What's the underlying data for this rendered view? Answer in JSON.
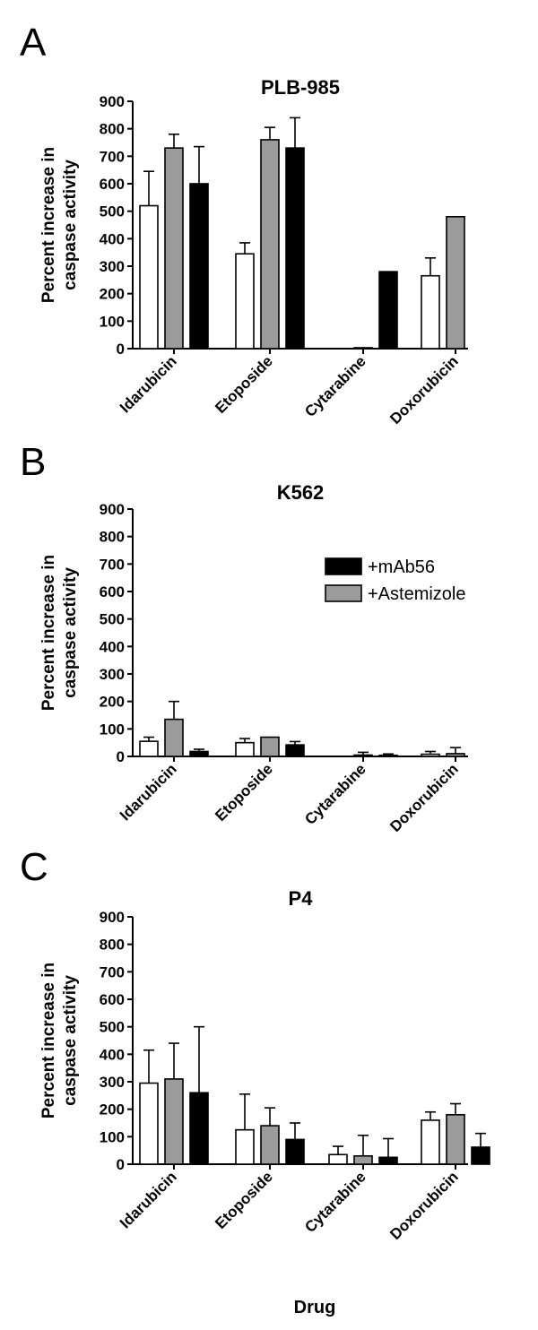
{
  "figure": {
    "xlabel": "Drug"
  },
  "chart_data": [
    {
      "type": "bar",
      "panel": "A",
      "title": "PLB-985",
      "ylabel_lines": [
        "Percent increase in",
        "caspase activity"
      ],
      "xlabel": "",
      "ylim": [
        0,
        900
      ],
      "yticks": [
        0,
        100,
        200,
        300,
        400,
        500,
        600,
        700,
        800,
        900
      ],
      "categories": [
        "Idarubicin",
        "Etoposide",
        "Cytarabine",
        "Doxorubicin"
      ],
      "series": [
        {
          "color": "#ffffff",
          "values": [
            520,
            345,
            null,
            265
          ],
          "errors": [
            125,
            40,
            null,
            65
          ]
        },
        {
          "name": "+Astemizole",
          "color": "#9b9b9b",
          "values": [
            730,
            760,
            3,
            480
          ],
          "errors": [
            50,
            45,
            0,
            0
          ]
        },
        {
          "name": "+mAb56",
          "color": "#000000",
          "values": [
            600,
            730,
            280,
            null
          ],
          "errors": [
            135,
            110,
            0,
            null
          ]
        }
      ],
      "legend": null
    },
    {
      "type": "bar",
      "panel": "B",
      "title": "K562",
      "ylabel_lines": [
        "Percent increase in",
        "caspase activity"
      ],
      "xlabel": "",
      "ylim": [
        0,
        900
      ],
      "yticks": [
        0,
        100,
        200,
        300,
        400,
        500,
        600,
        700,
        800,
        900
      ],
      "categories": [
        "Idarubicin",
        "Etoposide",
        "Cytarabine",
        "Doxorubicin"
      ],
      "series": [
        {
          "color": "#ffffff",
          "values": [
            55,
            50,
            null,
            8
          ],
          "errors": [
            15,
            15,
            null,
            10
          ]
        },
        {
          "name": "+Astemizole",
          "color": "#9b9b9b",
          "values": [
            135,
            70,
            5,
            10
          ],
          "errors": [
            65,
            0,
            10,
            22
          ]
        },
        {
          "name": "+mAb56",
          "color": "#000000",
          "values": [
            18,
            42,
            4,
            null
          ],
          "errors": [
            8,
            12,
            5,
            null
          ]
        }
      ],
      "legend": {
        "placement": "top-right",
        "entries": [
          "+mAb56",
          "+Astemizole"
        ]
      }
    },
    {
      "type": "bar",
      "panel": "C",
      "title": "P4",
      "ylabel_lines": [
        "Percent increase in",
        "caspase activity"
      ],
      "xlabel": "Drug",
      "ylim": [
        0,
        900
      ],
      "yticks": [
        0,
        100,
        200,
        300,
        400,
        500,
        600,
        700,
        800,
        900
      ],
      "categories": [
        "Idarubicin",
        "Etoposide",
        "Cytarabine",
        "Doxorubicin"
      ],
      "series": [
        {
          "color": "#ffffff",
          "values": [
            295,
            125,
            35,
            160
          ],
          "errors": [
            120,
            130,
            30,
            30
          ]
        },
        {
          "name": "+Astemizole",
          "color": "#9b9b9b",
          "values": [
            310,
            140,
            30,
            180
          ],
          "errors": [
            130,
            65,
            75,
            40
          ]
        },
        {
          "name": "+mAb56",
          "color": "#000000",
          "values": [
            260,
            90,
            25,
            62
          ],
          "errors": [
            240,
            60,
            68,
            50
          ]
        }
      ],
      "legend": null
    }
  ]
}
